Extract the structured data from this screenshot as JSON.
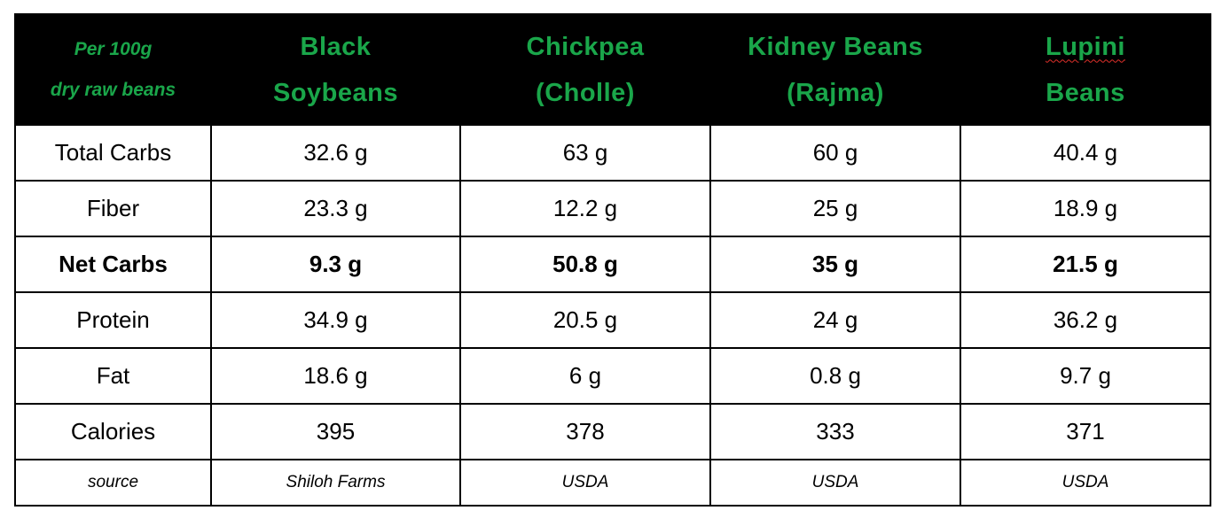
{
  "header": {
    "corner": [
      "Per 100g",
      "dry  raw beans"
    ],
    "columns": [
      {
        "line1": "Black",
        "line2": "Soybeans"
      },
      {
        "line1": "Chickpea",
        "line2": "(Cholle)"
      },
      {
        "line1": "Kidney Beans",
        "line2": "(Rajma)"
      },
      {
        "line1": "Lupini",
        "line2": "Beans"
      }
    ]
  },
  "rows": [
    {
      "label": "Total Carbs",
      "values": [
        "32.6 g",
        "63 g",
        "60 g",
        "40.4 g"
      ]
    },
    {
      "label": "Fiber",
      "values": [
        "23.3 g",
        "12.2 g",
        "25 g",
        "18.9 g"
      ]
    },
    {
      "label": "Net Carbs",
      "values": [
        "9.3 g",
        "50.8 g",
        "35 g",
        "21.5 g"
      ]
    },
    {
      "label": "Protein",
      "values": [
        "34.9 g",
        "20.5 g",
        "24 g",
        "36.2 g"
      ]
    },
    {
      "label": "Fat",
      "values": [
        "18.6 g",
        "6 g",
        "0.8 g",
        "9.7 g"
      ]
    },
    {
      "label": "Calories",
      "values": [
        "395",
        "378",
        "333",
        "371"
      ]
    },
    {
      "label": "source",
      "values": [
        "Shiloh Farms",
        "USDA",
        "USDA",
        "USDA"
      ]
    }
  ],
  "colors": {
    "header_bg": "#000000",
    "header_text": "#1aa64a",
    "spellcheck_underline": "#e0302a"
  }
}
